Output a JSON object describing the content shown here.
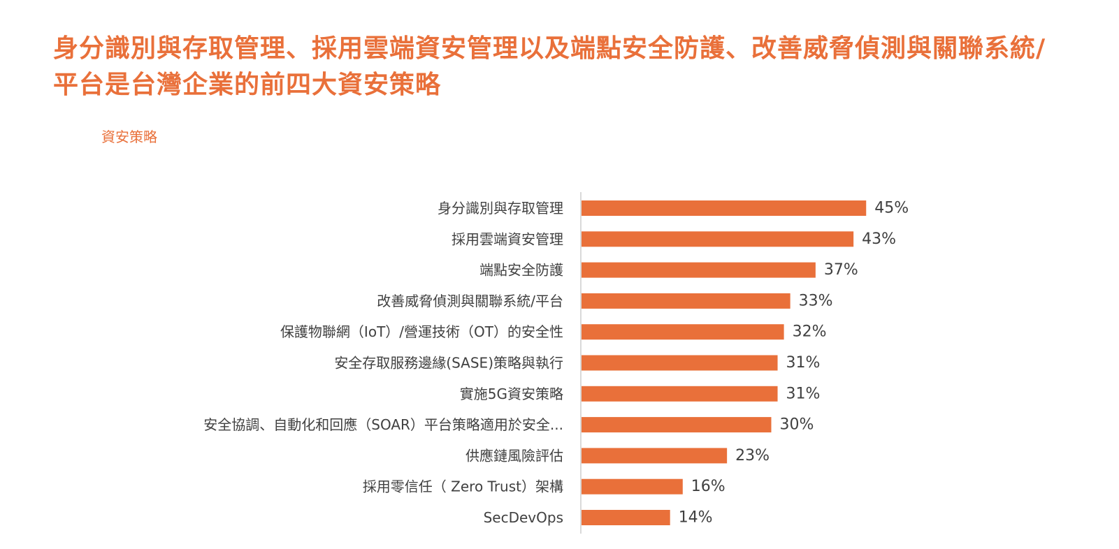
{
  "title": "身分識別與存取管理、採用雲端資安管理以及端點安全防護、改善威脅偵測與關聯系統/平台是台灣企業的前四大資安策略",
  "chart_data": {
    "type": "bar",
    "orientation": "horizontal",
    "subtitle": "資安策略",
    "categories": [
      "身分識別與存取管理",
      "採用雲端資安管理",
      "端點安全防護",
      "改善威脅偵測與關聯系統/平台",
      "保護物聯網（IoT）/營運技術（OT）的安全性",
      "安全存取服務邊緣(SASE)策略與執行",
      "實施5G資安策略",
      "安全協調、自動化和回應（SOAR）平台策略適用於安全...",
      "供應鏈風險評估",
      "採用零信任（ Zero Trust）架構",
      "SecDevOps"
    ],
    "values": [
      45,
      43,
      37,
      33,
      32,
      31,
      31,
      30,
      23,
      16,
      14
    ],
    "value_labels": [
      "45%",
      "43%",
      "37%",
      "33%",
      "32%",
      "31%",
      "31%",
      "30%",
      "23%",
      "16%",
      "14%"
    ],
    "unit": "%",
    "xlim": [
      0,
      100
    ],
    "grid": false,
    "legend": "none",
    "bar_color": "#e9703a",
    "axis_color": "#d9d9d9"
  }
}
